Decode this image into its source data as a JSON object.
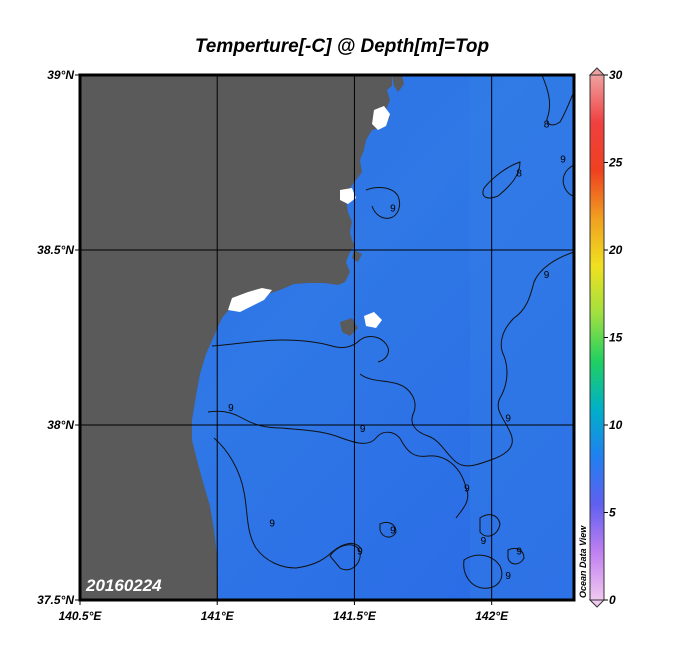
{
  "title": "Temperture[-C] @ Depth[m]=Top",
  "date_label": "20160224",
  "watermark": "Ocean Data View",
  "map": {
    "lon_range": [
      140.5,
      142.3
    ],
    "lat_range": [
      37.5,
      39.0
    ],
    "x_ticks": [
      {
        "value": 140.5,
        "label": "140.5°E"
      },
      {
        "value": 141.0,
        "label": "141°E"
      },
      {
        "value": 141.5,
        "label": "141.5°E"
      },
      {
        "value": 142.0,
        "label": "142°E"
      }
    ],
    "y_ticks": [
      {
        "value": 37.5,
        "label": "37.5°N"
      },
      {
        "value": 38.0,
        "label": "38°N"
      },
      {
        "value": 38.5,
        "label": "38.5°N"
      },
      {
        "value": 39.0,
        "label": "39°N"
      }
    ],
    "land_color": "#5a5a5a",
    "sea_color": "#2f72e8",
    "grid": true,
    "contour_labels": [
      {
        "text": "8",
        "lon": 142.2,
        "lat": 38.85
      },
      {
        "text": "9",
        "lon": 142.26,
        "lat": 38.75
      },
      {
        "text": "8",
        "lon": 142.1,
        "lat": 38.71
      },
      {
        "text": "9",
        "lon": 141.64,
        "lat": 38.61
      },
      {
        "text": "9",
        "lon": 142.2,
        "lat": 38.42
      },
      {
        "text": "9",
        "lon": 141.05,
        "lat": 38.04
      },
      {
        "text": "9",
        "lon": 141.53,
        "lat": 37.98
      },
      {
        "text": "9",
        "lon": 142.06,
        "lat": 38.01
      },
      {
        "text": "9",
        "lon": 141.91,
        "lat": 37.81
      },
      {
        "text": "9",
        "lon": 141.2,
        "lat": 37.71
      },
      {
        "text": "9",
        "lon": 141.64,
        "lat": 37.69
      },
      {
        "text": "9",
        "lon": 141.97,
        "lat": 37.66
      },
      {
        "text": "9",
        "lon": 142.1,
        "lat": 37.63
      },
      {
        "text": "9",
        "lon": 141.52,
        "lat": 37.63
      },
      {
        "text": "9",
        "lon": 142.06,
        "lat": 37.56
      }
    ]
  },
  "colorbar": {
    "min": 0,
    "max": 30,
    "ticks": [
      "0",
      "5",
      "10",
      "15",
      "20",
      "25",
      "30"
    ],
    "stops": [
      "#f0c8f0",
      "#c080f0",
      "#6060f0",
      "#2080f0",
      "#00b0c8",
      "#20d060",
      "#a0e040",
      "#f0e020",
      "#f0a020",
      "#f04020",
      "#f04040",
      "#f0a0a0"
    ]
  }
}
